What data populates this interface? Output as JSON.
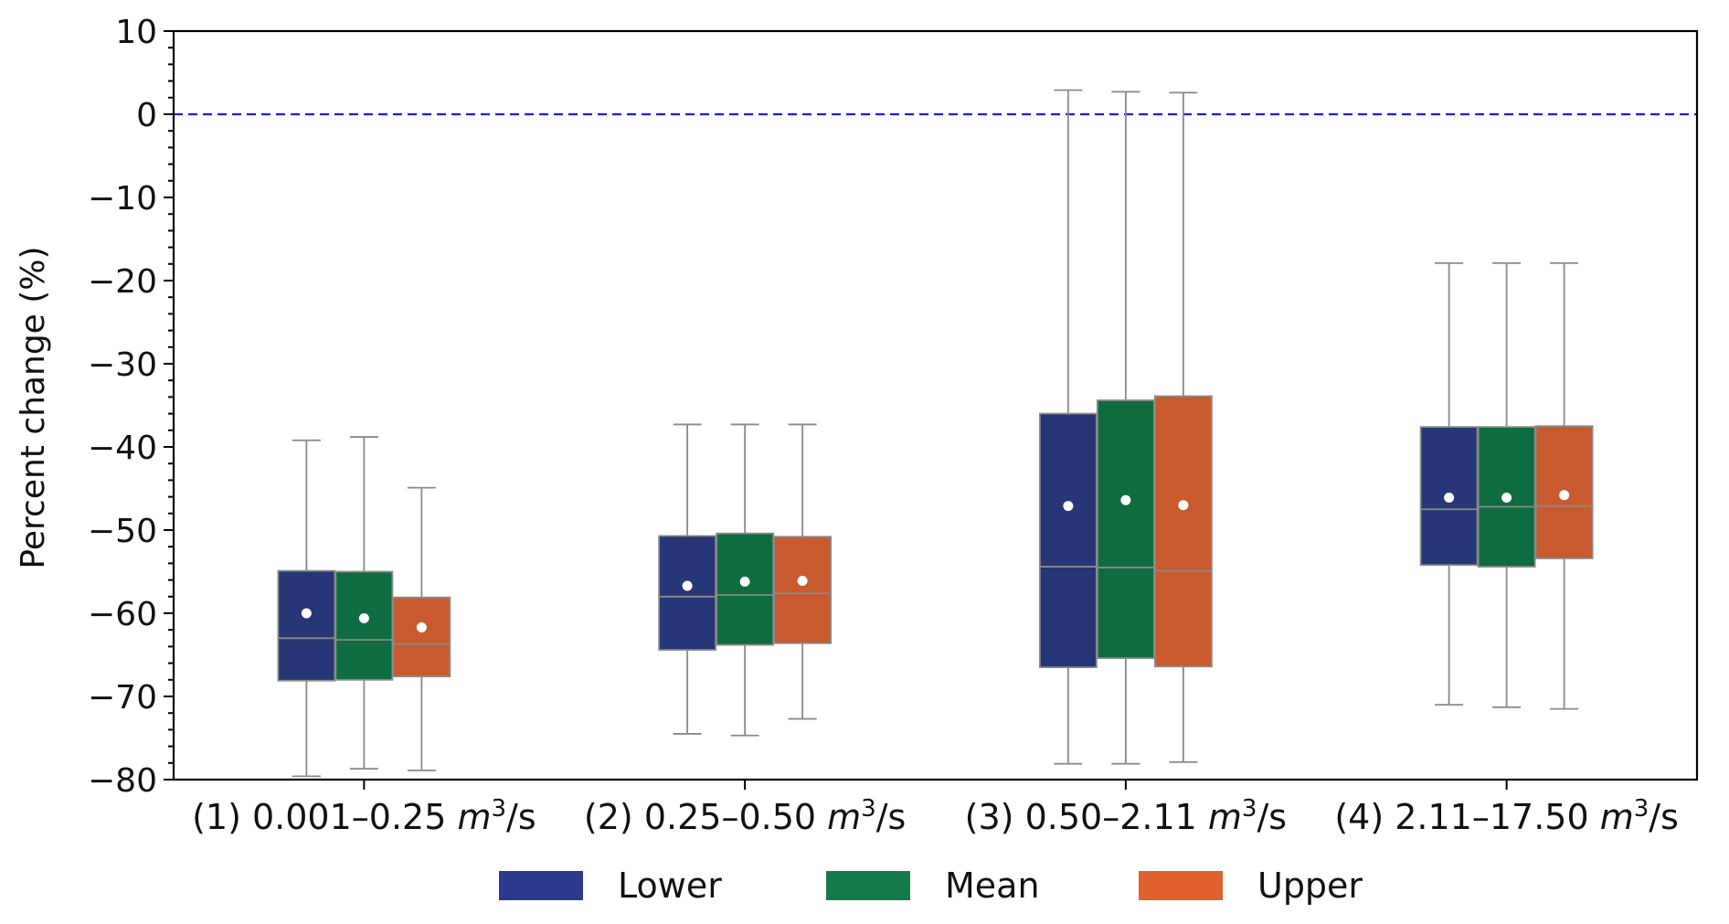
{
  "chart_data": {
    "type": "box",
    "ylabel": "Percent change (%)",
    "ylim": [
      -80,
      10
    ],
    "yticks": [
      10,
      0,
      -10,
      -20,
      -30,
      -40,
      -50,
      -60,
      -70,
      -80
    ],
    "ytick_labels": [
      "10",
      "0",
      "−10",
      "−20",
      "−30",
      "−40",
      "−50",
      "−60",
      "−70",
      "−80"
    ],
    "reference_line": {
      "y": 0,
      "style": "dashed",
      "color": "#1a1aff"
    },
    "categories": [
      {
        "prefix": "(1) 0.001–0.25 ",
        "unit_base": "m",
        "unit_exp": "3",
        "unit_tail": "/s"
      },
      {
        "prefix": "(2) 0.25–0.50 ",
        "unit_base": "m",
        "unit_exp": "3",
        "unit_tail": "/s"
      },
      {
        "prefix": "(3) 0.50–2.11 ",
        "unit_base": "m",
        "unit_exp": "3",
        "unit_tail": "/s"
      },
      {
        "prefix": "(4) 2.11–17.50 ",
        "unit_base": "m",
        "unit_exp": "3",
        "unit_tail": "/s"
      }
    ],
    "series": [
      {
        "name": "Lower",
        "color": "#263677",
        "legend_color": "#2b3a8f",
        "boxes": [
          {
            "whisker_low": -79.6,
            "q1": -68.1,
            "median": -63.0,
            "q3": -54.9,
            "whisker_high": -39.2,
            "mean": -60.0
          },
          {
            "whisker_low": -74.5,
            "q1": -64.4,
            "median": -58.0,
            "q3": -50.7,
            "whisker_high": -37.3,
            "mean": -56.7
          },
          {
            "whisker_low": -78.1,
            "q1": -66.5,
            "median": -54.4,
            "q3": -36.0,
            "whisker_high": 2.9,
            "mean": -47.1
          },
          {
            "whisker_low": -71.0,
            "q1": -54.2,
            "median": -47.5,
            "q3": -37.6,
            "whisker_high": -17.9,
            "mean": -46.1
          }
        ]
      },
      {
        "name": "Mean",
        "color": "#0f6b40",
        "legend_color": "#157a4a",
        "boxes": [
          {
            "whisker_low": -78.7,
            "q1": -68.0,
            "median": -63.2,
            "q3": -55.0,
            "whisker_high": -38.8,
            "mean": -60.6
          },
          {
            "whisker_low": -74.7,
            "q1": -63.8,
            "median": -57.8,
            "q3": -50.4,
            "whisker_high": -37.3,
            "mean": -56.2
          },
          {
            "whisker_low": -78.1,
            "q1": -65.4,
            "median": -54.5,
            "q3": -34.4,
            "whisker_high": 2.7,
            "mean": -46.4
          },
          {
            "whisker_low": -71.3,
            "q1": -54.4,
            "median": -47.2,
            "q3": -37.6,
            "whisker_high": -17.9,
            "mean": -46.1
          }
        ]
      },
      {
        "name": "Upper",
        "color": "#c85a2e",
        "legend_color": "#e0602e",
        "boxes": [
          {
            "whisker_low": -78.9,
            "q1": -67.6,
            "median": -63.7,
            "q3": -58.1,
            "whisker_high": -44.9,
            "mean": -61.7
          },
          {
            "whisker_low": -72.7,
            "q1": -63.6,
            "median": -57.6,
            "q3": -50.8,
            "whisker_high": -37.3,
            "mean": -56.1
          },
          {
            "whisker_low": -77.9,
            "q1": -66.4,
            "median": -54.9,
            "q3": -33.9,
            "whisker_high": 2.6,
            "mean": -47.0
          },
          {
            "whisker_low": -71.5,
            "q1": -53.4,
            "median": -47.1,
            "q3": -37.5,
            "whisker_high": -17.9,
            "mean": -45.8
          }
        ]
      }
    ],
    "legend": {
      "placement": "bottom-center"
    },
    "grid": false
  }
}
